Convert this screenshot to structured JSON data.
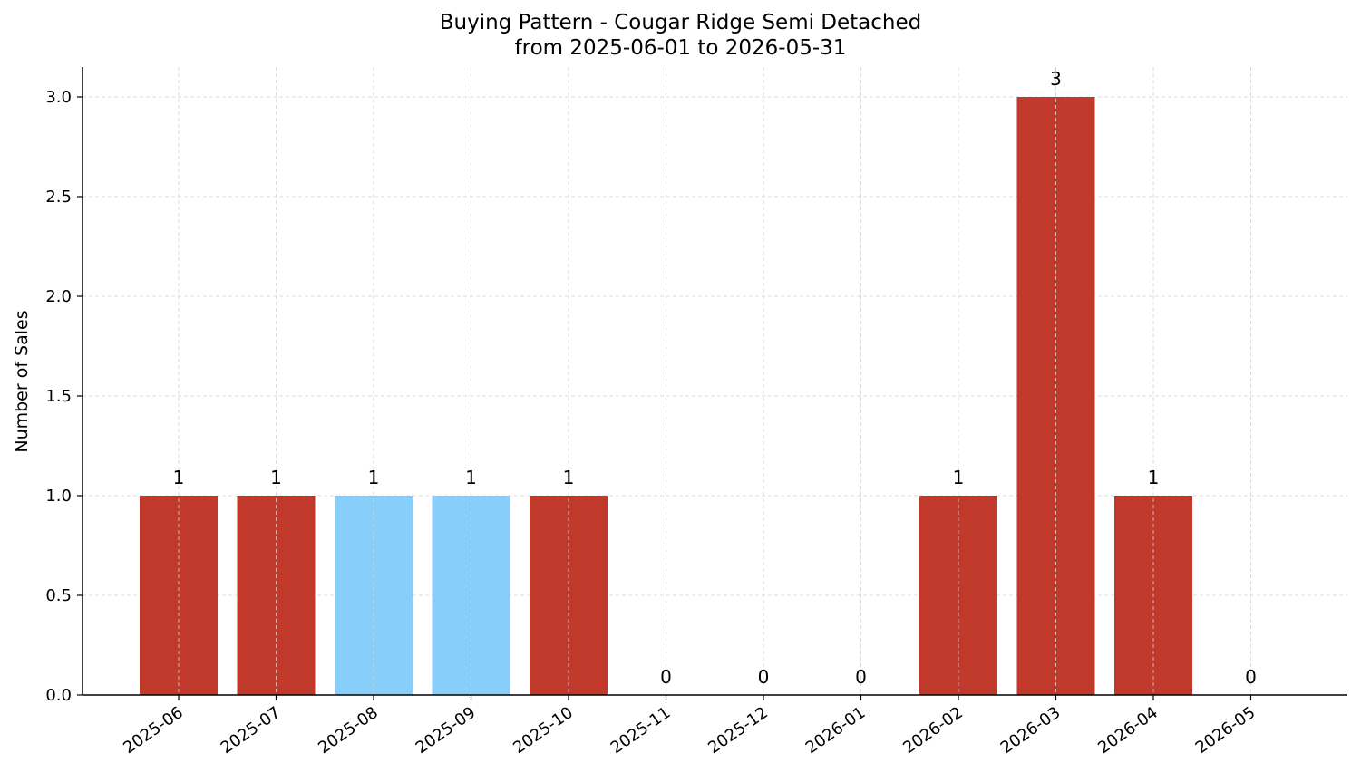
{
  "chart_data": {
    "type": "bar",
    "title": "Buying Pattern - Cougar Ridge Semi Detached",
    "subtitle": "from 2025-06-01 to 2026-05-31",
    "xlabel": "",
    "ylabel": "Number of Sales",
    "categories": [
      "2025-06",
      "2025-07",
      "2025-08",
      "2025-09",
      "2025-10",
      "2025-11",
      "2025-12",
      "2026-01",
      "2026-02",
      "2026-03",
      "2026-04",
      "2026-05"
    ],
    "values": [
      1,
      1,
      1,
      1,
      1,
      0,
      0,
      0,
      1,
      3,
      1,
      0
    ],
    "bar_colors": [
      "#c0392b",
      "#c0392b",
      "#87cefa",
      "#87cefa",
      "#c0392b",
      "#c0392b",
      "#c0392b",
      "#c0392b",
      "#c0392b",
      "#c0392b",
      "#c0392b",
      "#c0392b"
    ],
    "value_labels": [
      "1",
      "1",
      "1",
      "1",
      "1",
      "0",
      "0",
      "0",
      "1",
      "3",
      "1",
      "0"
    ],
    "ylim": [
      0,
      3.15
    ],
    "yticks": [
      "0.0",
      "0.5",
      "1.0",
      "1.5",
      "2.0",
      "2.5",
      "3.0"
    ],
    "grid": true,
    "grid_color": "#d3d3d3",
    "axis_color": "#000000"
  }
}
